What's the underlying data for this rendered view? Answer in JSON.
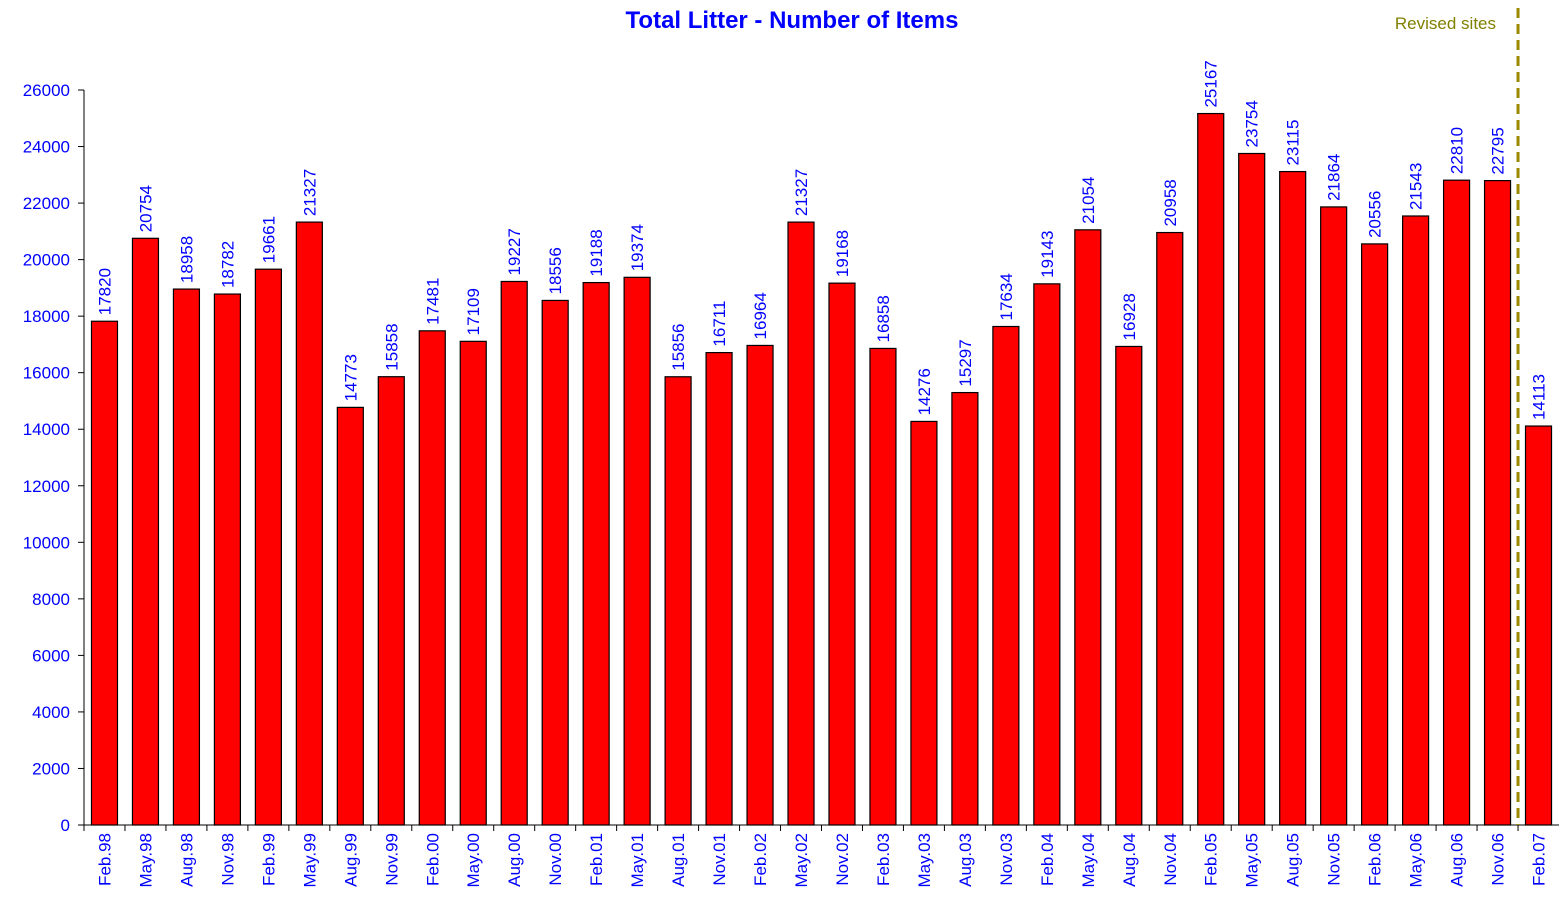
{
  "chart_data": {
    "type": "bar",
    "title": "Total Litter - Number of Items",
    "annotation": "Revised sites",
    "categories": [
      "Feb.98",
      "May.98",
      "Aug.98",
      "Nov.98",
      "Feb.99",
      "May.99",
      "Aug.99",
      "Nov.99",
      "Feb.00",
      "May.00",
      "Aug.00",
      "Nov.00",
      "Feb.01",
      "May.01",
      "Aug.01",
      "Nov.01",
      "Feb.02",
      "May.02",
      "Nov.02",
      "Feb.03",
      "May.03",
      "Aug.03",
      "Nov.03",
      "Feb.04",
      "May.04",
      "Aug.04",
      "Nov.04",
      "Feb.05",
      "May.05",
      "Aug.05",
      "Nov.05",
      "Feb.06",
      "May.06",
      "Aug.06",
      "Nov.06",
      "Feb.07"
    ],
    "values": [
      17820,
      20754,
      18958,
      18782,
      19661,
      21327,
      14773,
      15858,
      17481,
      17109,
      19227,
      18556,
      19188,
      19374,
      15856,
      16711,
      16964,
      21327,
      19168,
      16858,
      14276,
      15297,
      17634,
      19143,
      21054,
      16928,
      20958,
      25167,
      23754,
      23115,
      21864,
      20556,
      21543,
      22810,
      22795,
      14113
    ],
    "color": "#ff0000",
    "ylim": [
      0,
      26000
    ],
    "yticks": [
      0,
      2000,
      4000,
      6000,
      8000,
      10000,
      12000,
      14000,
      16000,
      18000,
      20000,
      22000,
      24000,
      26000
    ],
    "grid": false
  }
}
